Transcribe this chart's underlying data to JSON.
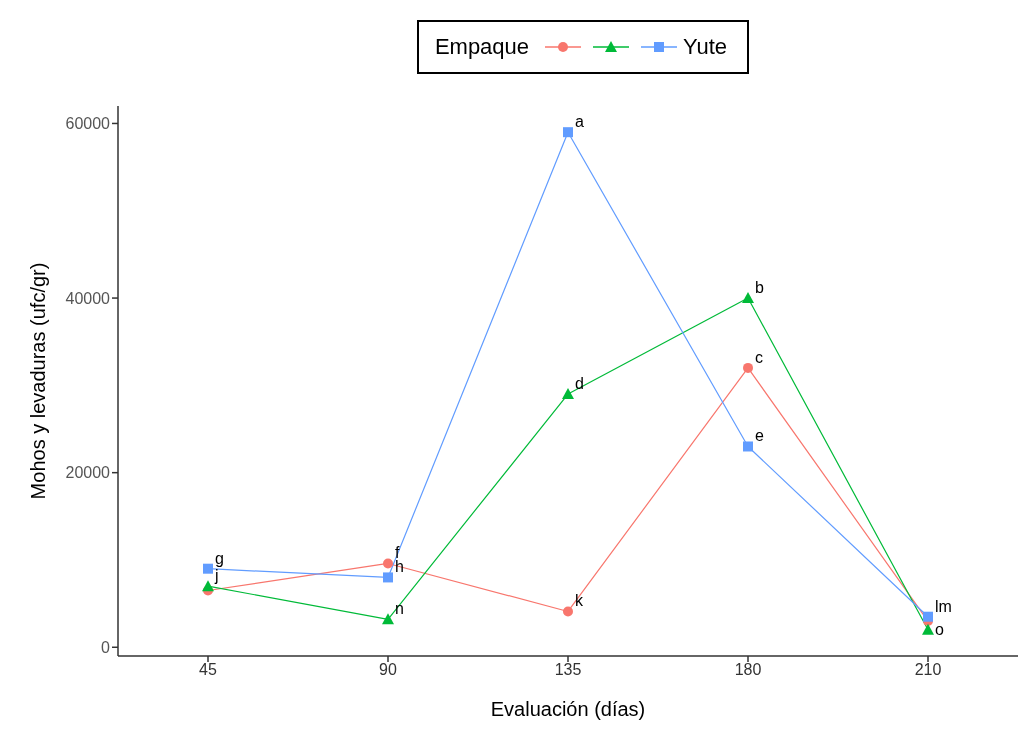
{
  "chart_data": {
    "type": "line",
    "xlabel": "Evaluación (días)",
    "ylabel": "Mohos y levaduras (ufc/gr)",
    "legend_title": "Empaque",
    "legend": "top",
    "categories": [
      "45",
      "90",
      "135",
      "180",
      "210"
    ],
    "series": [
      {
        "color": "#f8766d",
        "marker": "circle",
        "values": [
          6500,
          9600,
          4100,
          32000,
          3000
        ]
      },
      {
        "color": "#00ba38",
        "marker": "triangle",
        "values": [
          7000,
          3200,
          29000,
          40000,
          2000
        ]
      },
      {
        "name": "Yute",
        "color": "#619cff",
        "marker": "square",
        "values": [
          9000,
          8000,
          59000,
          23000,
          3500
        ]
      }
    ],
    "ylim": [
      -1000,
      62000
    ],
    "yticks": [
      0,
      20000,
      40000,
      60000
    ],
    "grid": false,
    "annotations": [
      {
        "text": "g",
        "x": "45",
        "y": 9000
      },
      {
        "text": "j",
        "x": "45",
        "y": 7000
      },
      {
        "text": "f",
        "x": "90",
        "y": 9600
      },
      {
        "text": "h",
        "x": "90",
        "y": 8000
      },
      {
        "text": "n",
        "x": "90",
        "y": 3200
      },
      {
        "text": "a",
        "x": "135",
        "y": 59000
      },
      {
        "text": "d",
        "x": "135",
        "y": 29000
      },
      {
        "text": "k",
        "x": "135",
        "y": 4100
      },
      {
        "text": "b",
        "x": "180",
        "y": 40000
      },
      {
        "text": "c",
        "x": "180",
        "y": 32000
      },
      {
        "text": "e",
        "x": "180",
        "y": 23000
      },
      {
        "text": "lm",
        "x": "210",
        "y": 3500
      },
      {
        "text": "o",
        "x": "210",
        "y": 3000
      }
    ]
  }
}
